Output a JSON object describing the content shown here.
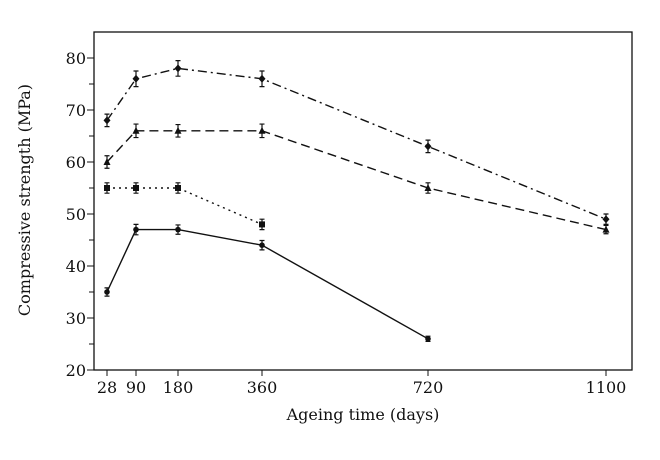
{
  "chart_data": {
    "type": "line",
    "title": "",
    "xlabel": "Ageing time (days)",
    "ylabel": "Compressive strength (MPa)",
    "ylim": [
      20,
      85
    ],
    "x_ticks": [
      "28",
      "90",
      "180",
      "360",
      "720",
      "1100"
    ],
    "y_ticks": [
      "20",
      "30",
      "40",
      "50",
      "60",
      "70",
      "80"
    ],
    "grid": false,
    "legend": "none",
    "series": [
      {
        "name": "series-dash-dot",
        "style": "dash-dot",
        "marker": "diamond",
        "x": [
          28,
          90,
          180,
          360,
          720,
          1100
        ],
        "values": [
          68,
          76,
          78,
          76,
          63,
          49
        ],
        "errors": [
          1.2,
          1.5,
          1.5,
          1.5,
          1.2,
          1
        ]
      },
      {
        "name": "series-dashed",
        "style": "dashed",
        "marker": "triangle",
        "x": [
          28,
          90,
          180,
          360,
          720,
          1100
        ],
        "values": [
          60,
          66,
          66,
          66,
          55,
          47
        ],
        "errors": [
          1.2,
          1.3,
          1.2,
          1.3,
          1,
          0.8
        ]
      },
      {
        "name": "series-dotted",
        "style": "dotted",
        "marker": "square",
        "x": [
          28,
          90,
          180,
          360
        ],
        "values": [
          55,
          55,
          55,
          48
        ],
        "errors": [
          1,
          1,
          1,
          1
        ]
      },
      {
        "name": "series-solid",
        "style": "solid",
        "marker": "circle",
        "x": [
          28,
          90,
          180,
          360,
          720
        ],
        "values": [
          35,
          47,
          47,
          44,
          26
        ],
        "errors": [
          0.8,
          1,
          0.9,
          0.9,
          0.5
        ]
      }
    ]
  }
}
